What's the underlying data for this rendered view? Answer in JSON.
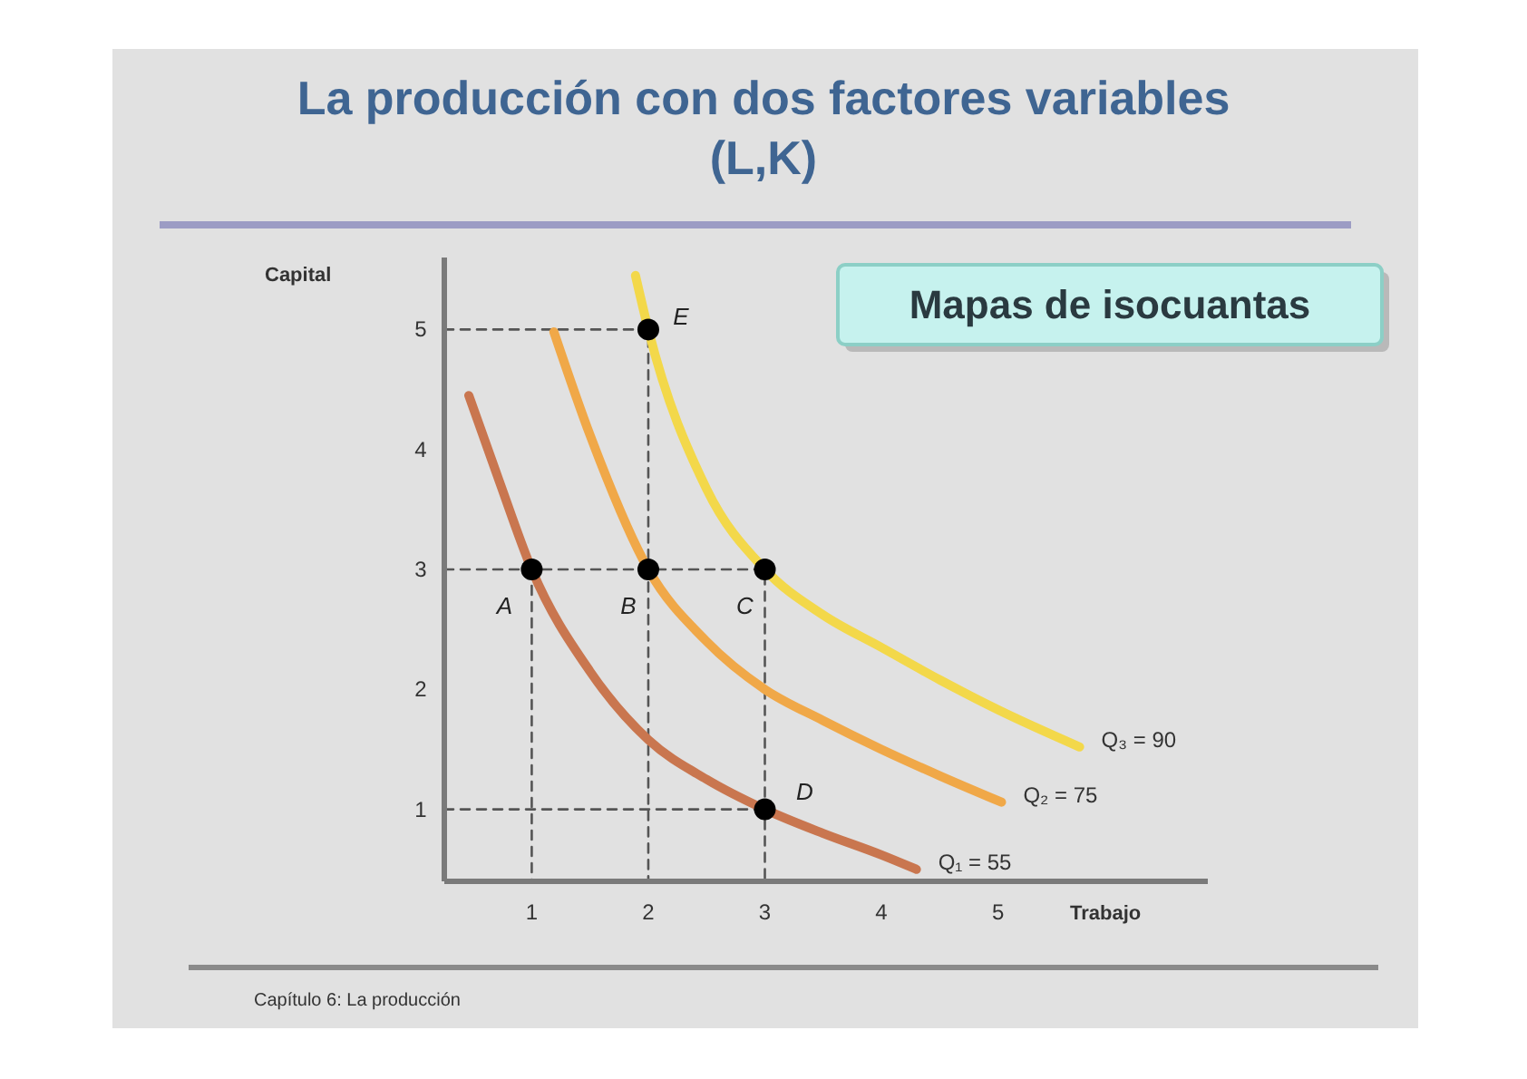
{
  "chart_data": {
    "type": "line",
    "title": "La producción con dos factores variables (L,K)",
    "xlabel": "Trabajo",
    "ylabel": "Capital",
    "xlim": [
      0.25,
      6.8
    ],
    "ylim": [
      0.4,
      5.6
    ],
    "xticks": [
      1,
      2,
      3,
      4,
      5
    ],
    "yticks": [
      1,
      2,
      3,
      4,
      5
    ],
    "series": [
      {
        "line_style": "dashed",
        "color": "#555555",
        "x": [
          0.25,
          2,
          2
        ],
        "values": [
          5,
          5,
          0.4
        ]
      },
      {
        "line_style": "dashed",
        "color": "#555555",
        "x": [
          0.25,
          3,
          3
        ],
        "values": [
          3,
          3,
          0.4
        ]
      },
      {
        "line_style": "dashed",
        "color": "#555555",
        "x": [
          0.25,
          3
        ],
        "values": [
          1,
          1
        ]
      },
      {
        "line_style": "dashed",
        "color": "#555555",
        "x": [
          1,
          1
        ],
        "values": [
          3,
          0.4
        ]
      },
      {
        "name": "Q₁ = 55",
        "color": "#c9764f",
        "x": [
          0.46,
          0.72,
          1,
          1.5,
          2,
          2.5,
          3,
          3.5,
          4,
          4.3
        ],
        "values": [
          4.45,
          3.74,
          3,
          2.15,
          1.58,
          1.25,
          1,
          0.8,
          0.62,
          0.5
        ]
      },
      {
        "name": "Q₂ = 75",
        "color": "#f0a848",
        "x": [
          1.19,
          1.5,
          2,
          2.5,
          3,
          3.5,
          4,
          4.5,
          5.03
        ],
        "values": [
          4.98,
          4.12,
          3,
          2.4,
          2.0,
          1.74,
          1.5,
          1.28,
          1.06
        ]
      },
      {
        "name": "Q₃ = 90",
        "color": "#f3d84a",
        "x": [
          1.89,
          2,
          2.5,
          3,
          3.5,
          4,
          4.5,
          5,
          5.7
        ],
        "values": [
          5.45,
          5,
          3.67,
          3,
          2.62,
          2.35,
          2.08,
          1.83,
          1.52
        ]
      },
      {
        "type": "scatter",
        "marker": "circle",
        "color": "#000000",
        "x": [
          1,
          2,
          3,
          3,
          2
        ],
        "values": [
          3,
          3,
          3,
          1,
          5
        ]
      }
    ],
    "annotations": [
      "Mapas de isocuantas",
      {
        "text": "A",
        "x": 1,
        "y": 3
      },
      {
        "text": "B",
        "x": 2,
        "y": 3
      },
      {
        "text": "C",
        "x": 3,
        "y": 3
      },
      {
        "text": "D",
        "x": 3,
        "y": 1
      },
      {
        "text": "E",
        "x": 2,
        "y": 5
      },
      "Capítulo 6: La producción"
    ]
  }
}
